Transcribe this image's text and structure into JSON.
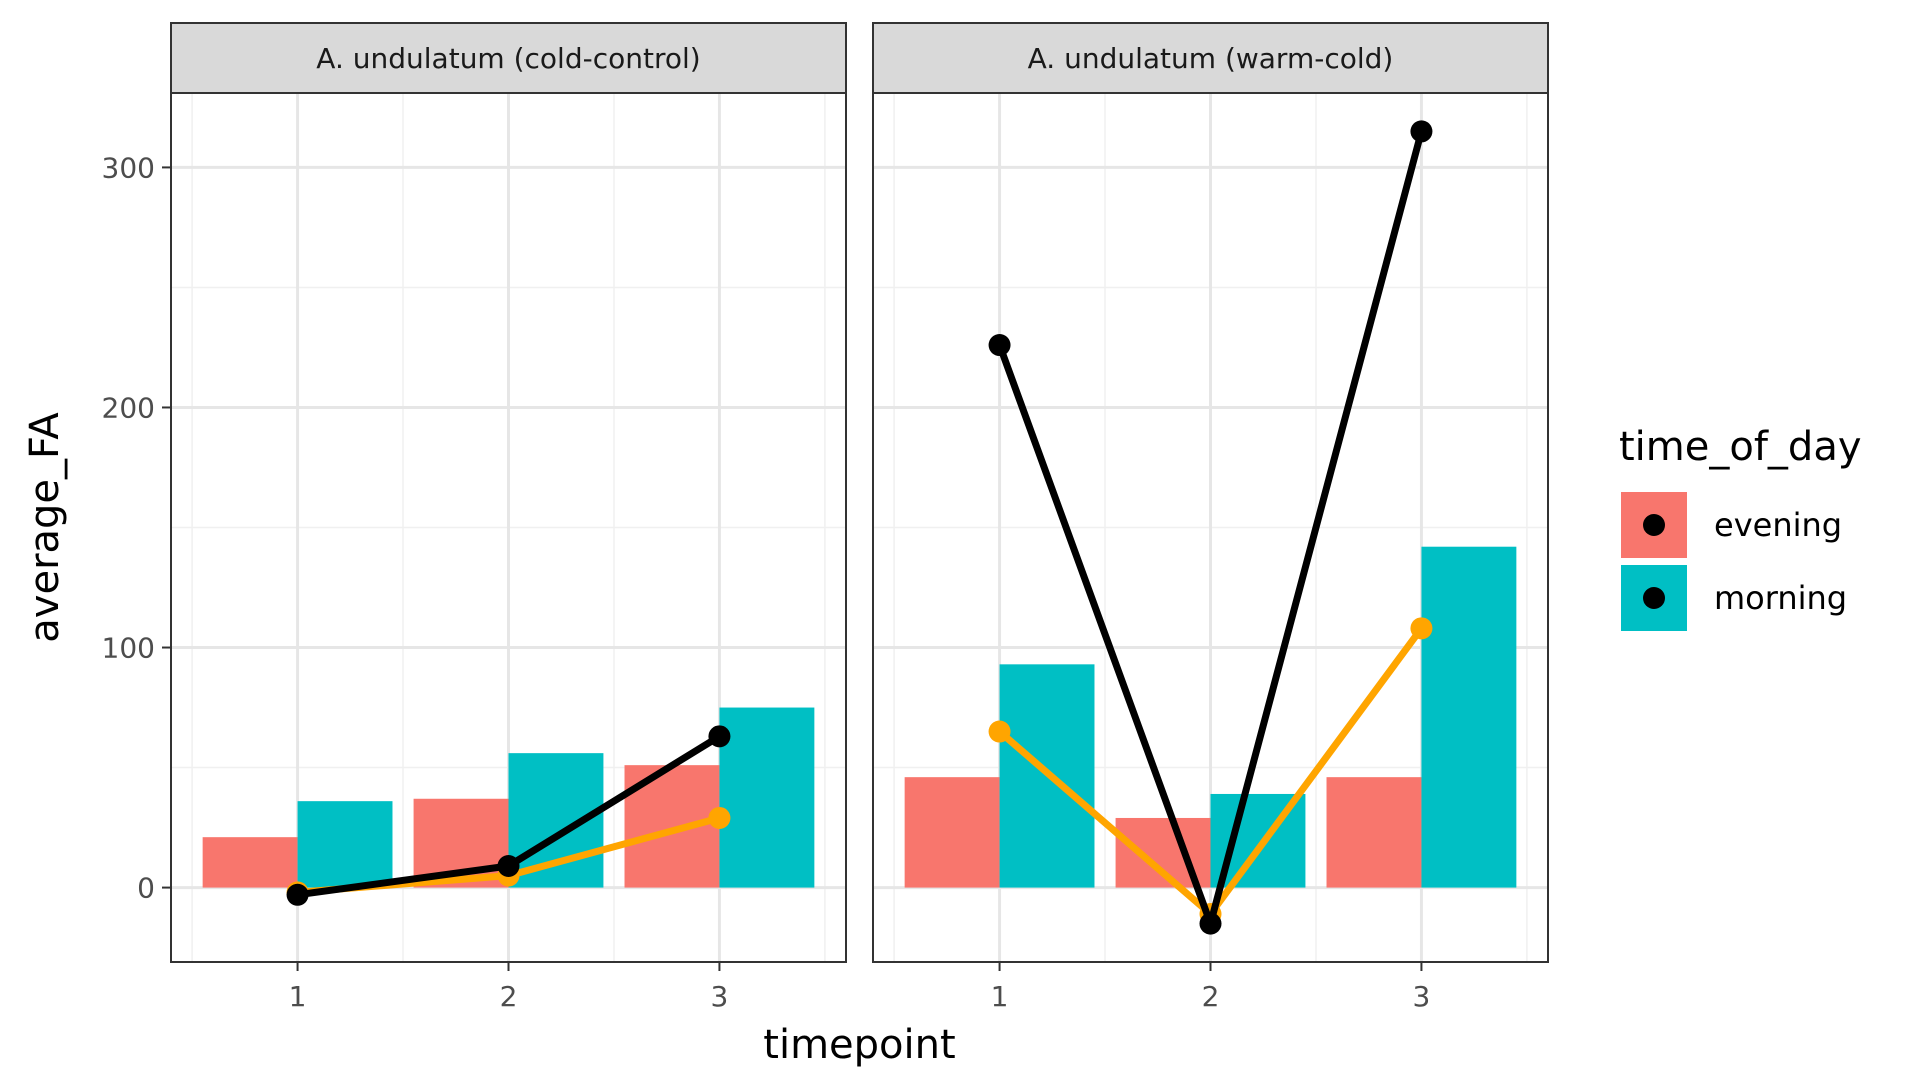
{
  "chart_data": {
    "type": "bar",
    "xlabel": "timepoint",
    "ylabel": "average_FA",
    "ylim": [
      -31,
      331
    ],
    "y_ticks": [
      0,
      100,
      200,
      300
    ],
    "categories": [
      "1",
      "2",
      "3"
    ],
    "legend": {
      "title": "time_of_day",
      "position": "right",
      "items": [
        {
          "label": "evening",
          "color": "#F8766D"
        },
        {
          "label": "morning",
          "color": "#00BFC4"
        }
      ]
    },
    "line_colors": {
      "black": "#000000",
      "orange": "#FFA500"
    },
    "grid": true,
    "panels": [
      {
        "title": "A. undulatum (cold-control)",
        "bars": {
          "evening": [
            21,
            37,
            51
          ],
          "morning": [
            36,
            56,
            75
          ]
        },
        "lines": {
          "orange": [
            -2,
            5,
            29
          ],
          "black": [
            -3,
            9,
            63
          ]
        }
      },
      {
        "title": "A. undulatum (warm-cold)",
        "bars": {
          "evening": [
            46,
            29,
            46
          ],
          "morning": [
            93,
            39,
            142
          ]
        },
        "lines": {
          "orange": [
            65,
            -11,
            108
          ],
          "black": [
            226,
            -15,
            315
          ]
        }
      }
    ]
  }
}
